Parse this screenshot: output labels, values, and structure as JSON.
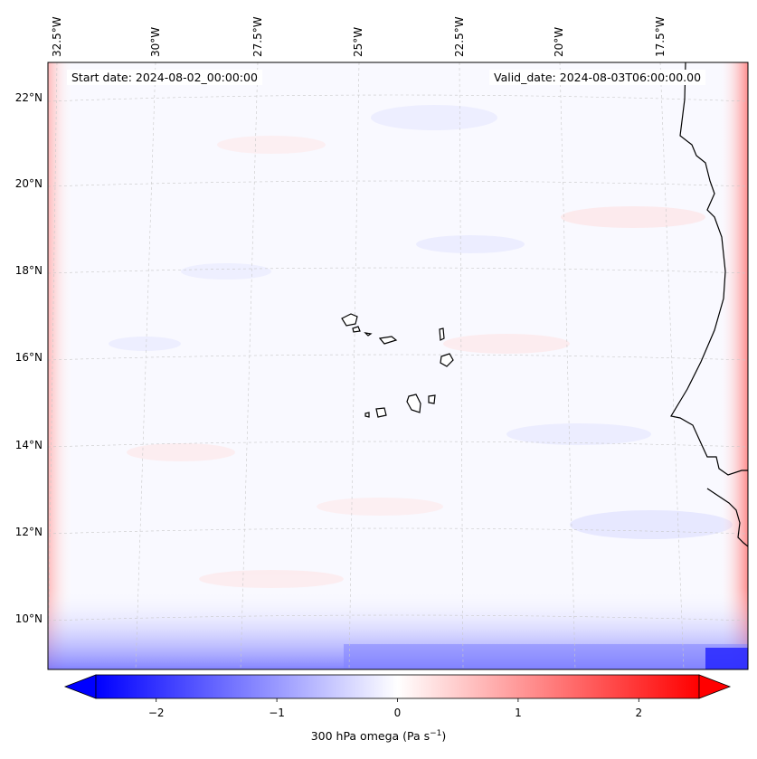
{
  "header": {
    "start_date": "Start date: 2024-08-02_00:00:00",
    "valid_date": "Valid_date: 2024-08-03T06:00:00.00"
  },
  "map": {
    "longitude_labels": [
      "32.5°W",
      "30°W",
      "27.5°W",
      "25°W",
      "22.5°W",
      "20°W",
      "17.5°W"
    ],
    "latitude_labels": [
      "22°N",
      "20°N",
      "18°N",
      "16°N",
      "14°N",
      "12°N",
      "10°N"
    ],
    "gridlines": true
  },
  "colorbar": {
    "label_main": "300 hPa omega (Pa s",
    "label_exp": "−1",
    "label_close": ")",
    "tick_labels": [
      "−2",
      "−1",
      "0",
      "1",
      "2"
    ],
    "tick_values": [
      -2,
      -1,
      0,
      1,
      2
    ],
    "range": [
      -2.5,
      2.5
    ],
    "extend": "both",
    "low_color": "#0000ff",
    "mid_color": "#ffffff",
    "high_color": "#ff0000"
  }
}
